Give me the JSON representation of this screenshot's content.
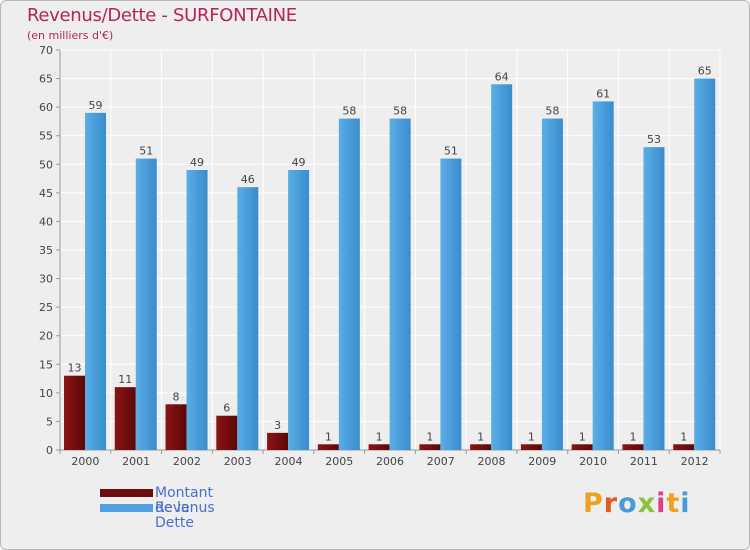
{
  "chart_data": {
    "type": "bar",
    "title": "Revenus/Dette - SURFONTAINE",
    "subtitle": "(en milliers d'€)",
    "xlabel": "",
    "ylabel": "",
    "ylim": [
      0,
      70
    ],
    "yticks": [
      0,
      5,
      10,
      15,
      20,
      25,
      30,
      35,
      40,
      45,
      50,
      55,
      60,
      65,
      70
    ],
    "grid": true,
    "legend_position": "bottom-left",
    "categories": [
      "2000",
      "2001",
      "2002",
      "2003",
      "2004",
      "2005",
      "2006",
      "2007",
      "2008",
      "2009",
      "2010",
      "2011",
      "2012"
    ],
    "series": [
      {
        "name": "Montant de la Dette",
        "color": "#7a1010",
        "values": [
          13,
          11,
          8,
          6,
          3,
          1,
          1,
          1,
          1,
          1,
          1,
          1,
          1
        ]
      },
      {
        "name": "Revenus",
        "color": "#4fa0df",
        "values": [
          59,
          51,
          49,
          46,
          49,
          58,
          58,
          51,
          64,
          58,
          61,
          53,
          65
        ]
      }
    ]
  },
  "legend": {
    "items": [
      "Montant de la Dette",
      "Revenus"
    ],
    "colors": [
      "#6b0d0d",
      "#4fa0df"
    ]
  },
  "brand": {
    "text": "Proxiti",
    "letters": [
      "P",
      "r",
      "o",
      "x",
      "i",
      "t",
      "i"
    ],
    "colors": [
      "#f0a020",
      "#e05a24",
      "#4a9ad8",
      "#8ac13e",
      "#e23b8a",
      "#f0a020",
      "#4a9ad8"
    ]
  }
}
